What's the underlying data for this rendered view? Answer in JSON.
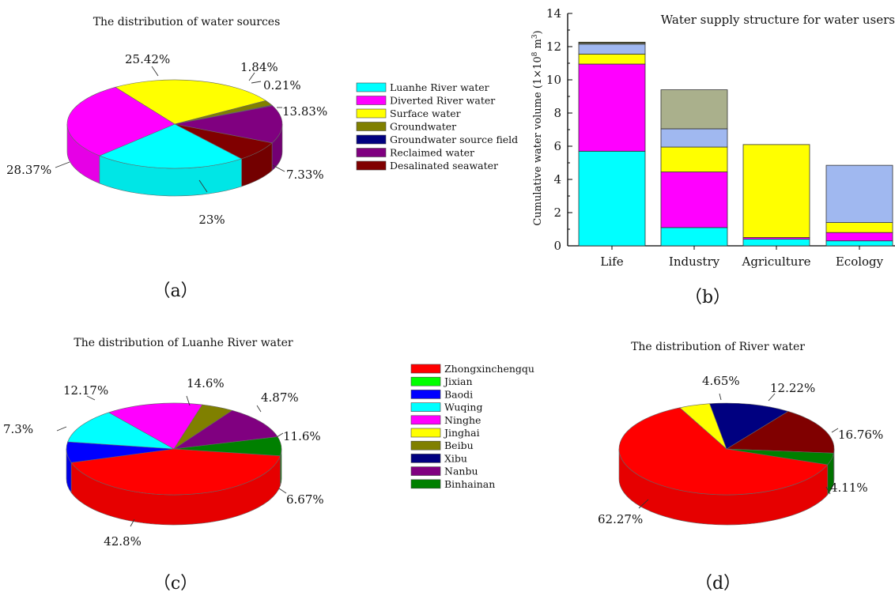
{
  "chart_data": [
    {
      "type": "pie",
      "panel": "(a)",
      "title": "The distribution of water sources",
      "slices": [
        {
          "name": "Luanhe River water",
          "value": 23,
          "label": "23%",
          "color": "#00ffff"
        },
        {
          "name": "Diverted River water",
          "value": 28.37,
          "label": "28.37%",
          "color": "#ff00ff"
        },
        {
          "name": "Surface water",
          "value": 25.42,
          "label": "25.42%",
          "color": "#ffff00"
        },
        {
          "name": "Groundwater",
          "value": 1.84,
          "label": "1.84%",
          "color": "#808000"
        },
        {
          "name": "Groundwater source field",
          "value": 0.21,
          "label": "0.21%",
          "color": "#000080"
        },
        {
          "name": "Reclaimed water",
          "value": 13.83,
          "label": "13.83%",
          "color": "#800080"
        },
        {
          "name": "Desalinated seawater",
          "value": 7.33,
          "label": "7.33%",
          "color": "#800000"
        }
      ],
      "legend": [
        "Luanhe River water",
        "Diverted River water",
        "Surface water",
        "Groundwater",
        "Groundwater source field",
        "Reclaimed water",
        "Desalinated seawater"
      ],
      "legend_placement": "right"
    },
    {
      "type": "bar",
      "stacked": true,
      "panel": "(b)",
      "title": "Water supply structure for water users",
      "categories": [
        "Life",
        "Industry",
        "Agriculture",
        "Ecology"
      ],
      "ylabel_main": "Cumulative water volume (1×10",
      "ylabel_sup1": "8",
      "ylabel_mid": " m",
      "ylabel_sup2": "3",
      "ylabel_end": ")",
      "ylim": [
        0,
        14
      ],
      "yticks": [
        "0",
        "2",
        "4",
        "6",
        "8",
        "10",
        "12",
        "14"
      ],
      "series": [
        {
          "values": [
            5.7,
            1.1,
            0.4,
            0.3
          ],
          "color": "#00ffff"
        },
        {
          "values": [
            5.25,
            3.35,
            0.1,
            0.5
          ],
          "color": "#ff00ff"
        },
        {
          "values": [
            0.6,
            1.5,
            5.6,
            0.6
          ],
          "color": "#ffff00"
        },
        {
          "values": [
            0.6,
            1.1,
            0.0,
            3.45
          ],
          "color": "#a0b8f0"
        },
        {
          "values": [
            0.07,
            2.35,
            0.0,
            0.0
          ],
          "color": "#aab08c"
        },
        {
          "values": [
            0.05,
            0.0,
            0.0,
            0.0
          ],
          "color": "#808000"
        }
      ]
    },
    {
      "type": "pie",
      "panel": "(c)",
      "title": "The distribution of Luanhe River water",
      "slices": [
        {
          "name": "Zhongxinchengqu",
          "value": 42.8,
          "label": "42.8%",
          "color": "#ff0000"
        },
        {
          "name": "Baodi",
          "value": 7.3,
          "label": "7.3%",
          "color": "#0000ff"
        },
        {
          "name": "Wuqing",
          "value": 12.17,
          "label": "12.17%",
          "color": "#00ffff"
        },
        {
          "name": "Ninghe",
          "value": 14.6,
          "label": "14.6%",
          "color": "#ff00ff"
        },
        {
          "name": "Beibu",
          "value": 4.87,
          "label": "4.87%",
          "color": "#808000"
        },
        {
          "name": "Nanbu",
          "value": 11.6,
          "label": "11.6%",
          "color": "#800080"
        },
        {
          "name": "Binhainan",
          "value": 6.67,
          "label": "6.67%",
          "color": "#008000"
        }
      ],
      "legend": [
        {
          "name": "Zhongxinchengqu",
          "color": "#ff0000"
        },
        {
          "name": "Jixian",
          "color": "#00ff00"
        },
        {
          "name": "Baodi",
          "color": "#0000ff"
        },
        {
          "name": "Wuqing",
          "color": "#00ffff"
        },
        {
          "name": "Ninghe",
          "color": "#ff00ff"
        },
        {
          "name": "Jinghai",
          "color": "#ffff00"
        },
        {
          "name": "Beibu",
          "color": "#808000"
        },
        {
          "name": "Xibu",
          "color": "#000080"
        },
        {
          "name": "Nanbu",
          "color": "#800080"
        },
        {
          "name": "Binhainan",
          "color": "#008000"
        }
      ],
      "legend_placement": "right"
    },
    {
      "type": "pie",
      "panel": "(d)",
      "title": "The distribution of  River water",
      "slices": [
        {
          "name": "Zhongxinchengqu",
          "value": 62.27,
          "label": "62.27%",
          "color": "#ff0000"
        },
        {
          "name": "Jinghai",
          "value": 4.65,
          "label": "4.65%",
          "color": "#ffff00"
        },
        {
          "name": "Xibu",
          "value": 12.22,
          "label": "12.22%",
          "color": "#000080"
        },
        {
          "name": "Nanbu",
          "value": 16.76,
          "label": "16.76%",
          "color": "#800000"
        },
        {
          "name": "Binhainan",
          "value": 4.11,
          "label": "4.11%",
          "color": "#008000"
        }
      ]
    }
  ],
  "captions": {
    "a": "（a）",
    "b": "（b）",
    "c": "（c）",
    "d": "（d）"
  }
}
